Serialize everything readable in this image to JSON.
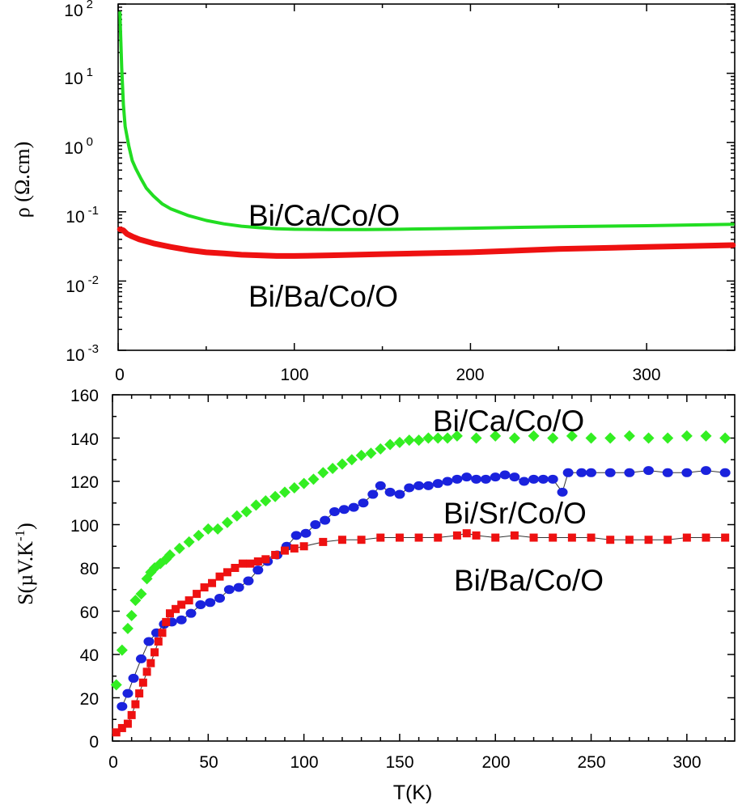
{
  "chart_data": [
    {
      "type": "line",
      "panel": "top",
      "title": "",
      "xlabel": "",
      "ylabel": "ρ (Ω.cm)",
      "yscale": "log",
      "xlim": [
        0,
        350
      ],
      "ylim": [
        0.001,
        100
      ],
      "x_ticks": [
        "0",
        "100",
        "200",
        "300"
      ],
      "y_ticks": [
        {
          "base": "10",
          "exp": "2"
        },
        {
          "base": "10",
          "exp": "1"
        },
        {
          "base": "10",
          "exp": "0"
        },
        {
          "base": "10",
          "exp": "-1"
        },
        {
          "base": "10",
          "exp": "-2"
        },
        {
          "base": "10",
          "exp": "-3"
        }
      ],
      "grid": false,
      "series": [
        {
          "name": "Bi/Ca/Co/O",
          "color": "#22dd22",
          "x": [
            1,
            2,
            3,
            4,
            6,
            8,
            10,
            13,
            16,
            20,
            25,
            30,
            40,
            50,
            60,
            70,
            80,
            90,
            100,
            120,
            140,
            160,
            180,
            200,
            250,
            300,
            349
          ],
          "y": [
            75,
            12,
            3.5,
            1.7,
            0.9,
            0.55,
            0.42,
            0.3,
            0.22,
            0.17,
            0.13,
            0.11,
            0.088,
            0.075,
            0.067,
            0.062,
            0.059,
            0.057,
            0.056,
            0.0555,
            0.0555,
            0.056,
            0.057,
            0.058,
            0.061,
            0.063,
            0.066
          ]
        },
        {
          "name": "Bi/Ba/Co/O",
          "color": "#ee1111",
          "x": [
            1,
            3,
            5,
            8,
            12,
            20,
            30,
            40,
            50,
            60,
            70,
            80,
            90,
            100,
            120,
            150,
            200,
            250,
            300,
            349
          ],
          "y": [
            0.056,
            0.054,
            0.048,
            0.044,
            0.04,
            0.035,
            0.031,
            0.028,
            0.026,
            0.025,
            0.024,
            0.0235,
            0.023,
            0.023,
            0.0235,
            0.0245,
            0.026,
            0.029,
            0.031,
            0.033
          ]
        }
      ],
      "annotations": [
        "Bi/Ca/Co/O",
        "Bi/Ba/Co/O"
      ]
    },
    {
      "type": "scatter",
      "panel": "bottom",
      "title": "",
      "xlabel": "T(K)",
      "ylabel": "S(µV.K",
      "ylabel_sup": "-1",
      "ylabel_end": ")",
      "xlim": [
        0,
        325
      ],
      "ylim": [
        0,
        160
      ],
      "x_ticks": [
        "0",
        "50",
        "100",
        "150",
        "200",
        "250",
        "300"
      ],
      "y_ticks": [
        "0",
        "20",
        "40",
        "60",
        "80",
        "100",
        "120",
        "140",
        "160"
      ],
      "grid": false,
      "series": [
        {
          "name": "Bi/Ca/Co/O",
          "marker": "diamond",
          "color": "#33ee22",
          "connected": false,
          "x": [
            2,
            5,
            8,
            10,
            12,
            15,
            18,
            20,
            22,
            25,
            28,
            30,
            35,
            40,
            45,
            50,
            55,
            60,
            65,
            70,
            75,
            80,
            85,
            90,
            95,
            100,
            105,
            110,
            115,
            120,
            125,
            130,
            135,
            140,
            145,
            150,
            155,
            160,
            165,
            170,
            175,
            180,
            190,
            200,
            210,
            220,
            230,
            240,
            250,
            260,
            270,
            280,
            290,
            300,
            310,
            320
          ],
          "y": [
            26,
            42,
            52,
            58,
            65,
            68,
            75,
            78,
            80,
            82,
            84,
            86,
            89,
            92,
            95,
            98,
            98,
            101,
            104,
            106,
            109,
            111,
            113,
            115,
            117,
            119,
            121,
            124,
            126,
            128,
            130,
            132,
            133,
            135,
            137,
            138,
            139,
            139,
            140,
            140,
            140,
            141,
            140,
            141,
            140,
            141,
            140,
            141,
            140,
            140,
            141,
            140,
            140,
            141,
            141,
            140
          ]
        },
        {
          "name": "Bi/Sr/Co/O",
          "marker": "circle",
          "color": "#1a22dd",
          "connected": true,
          "x": [
            5,
            8,
            11,
            15,
            19,
            23,
            27,
            31,
            36,
            41,
            46,
            51,
            56,
            61,
            66,
            71,
            76,
            81,
            86,
            91,
            96,
            101,
            106,
            111,
            116,
            121,
            126,
            131,
            136,
            140,
            145,
            150,
            155,
            160,
            165,
            170,
            175,
            180,
            185,
            190,
            195,
            200,
            205,
            210,
            215,
            220,
            225,
            230,
            235,
            238,
            245,
            250,
            260,
            270,
            280,
            290,
            300,
            310,
            320
          ],
          "y": [
            16,
            22,
            29,
            38,
            46,
            50,
            54,
            55,
            56,
            59,
            63,
            64,
            66,
            70,
            71,
            74,
            79,
            83,
            86,
            90,
            95,
            96,
            100,
            102,
            106,
            107,
            108,
            110,
            114,
            118,
            115,
            114,
            117,
            118,
            118,
            119,
            120,
            121,
            122,
            121,
            121,
            122,
            123,
            122,
            120,
            121,
            121,
            121,
            115,
            124,
            124,
            124,
            124,
            124,
            125,
            124,
            124,
            125,
            124
          ]
        },
        {
          "name": "Bi/Ba/Co/O",
          "marker": "square",
          "color": "#ee1111",
          "connected": true,
          "x": [
            2,
            5,
            8,
            10,
            12,
            14,
            16,
            18,
            20,
            22,
            24,
            26,
            28,
            30,
            33,
            36,
            40,
            44,
            48,
            52,
            56,
            60,
            64,
            68,
            72,
            76,
            80,
            85,
            90,
            95,
            100,
            110,
            120,
            130,
            140,
            150,
            160,
            170,
            180,
            185,
            190,
            200,
            210,
            220,
            230,
            240,
            250,
            260,
            270,
            280,
            290,
            300,
            310,
            320
          ],
          "y": [
            4,
            6,
            8,
            12,
            17,
            22,
            27,
            32,
            36,
            41,
            46,
            50,
            55,
            59,
            61,
            63,
            65,
            68,
            71,
            73,
            76,
            78,
            80,
            82,
            82,
            83,
            84,
            86,
            88,
            89,
            90,
            92,
            93,
            93,
            94,
            94,
            94,
            94,
            95,
            96,
            95,
            94,
            95,
            94,
            94,
            94,
            94,
            93,
            93,
            93,
            93,
            94,
            94,
            94
          ]
        }
      ],
      "annotations": [
        "Bi/Ca/Co/O",
        "Bi/Sr/Co/O",
        "Bi/Ba/Co/O"
      ]
    }
  ]
}
